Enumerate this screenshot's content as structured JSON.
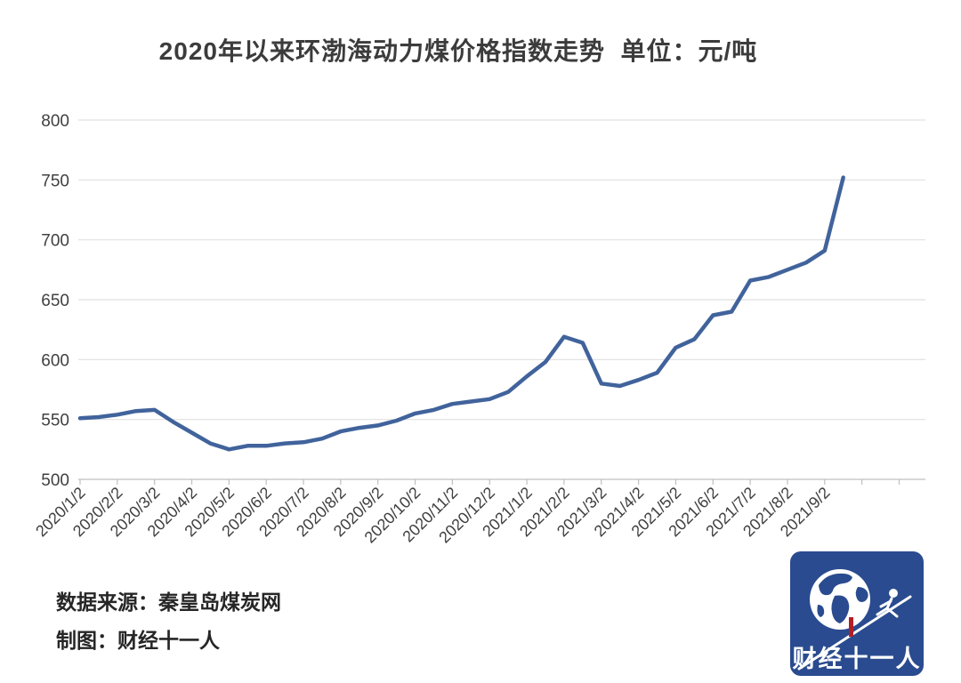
{
  "header": {
    "title": "2020年以来环渤海动力煤价格指数走势  单位：元/吨"
  },
  "footer": {
    "source_line": "数据来源：秦皇岛煤炭网",
    "credit_line": "制图：财经十一人"
  },
  "logo": {
    "text": "财经十一人",
    "bg_color": "#2a4b8f",
    "accent_color": "#b01f24",
    "icons": [
      "globe-icon",
      "fencer-icon"
    ]
  },
  "chart_data": {
    "type": "line",
    "title": "2020年以来环渤海动力煤价格指数走势",
    "unit_label": "单位：元/吨",
    "ylabel": "",
    "xlabel": "",
    "ylim": [
      500,
      800
    ],
    "y_ticks": [
      500,
      550,
      600,
      650,
      700,
      750,
      800
    ],
    "grid": true,
    "legend": "none",
    "line_color": "#41639c",
    "x": [
      "2020/1/2",
      "2020/1/16",
      "2020/2/2",
      "2020/2/16",
      "2020/3/2",
      "2020/3/16",
      "2020/4/2",
      "2020/4/16",
      "2020/5/2",
      "2020/5/16",
      "2020/6/2",
      "2020/6/16",
      "2020/7/2",
      "2020/7/16",
      "2020/8/2",
      "2020/8/16",
      "2020/9/2",
      "2020/9/16",
      "2020/10/2",
      "2020/10/16",
      "2020/11/2",
      "2020/11/16",
      "2020/12/2",
      "2020/12/16",
      "2021/1/2",
      "2021/1/16",
      "2021/2/2",
      "2021/2/16",
      "2021/3/2",
      "2021/3/16",
      "2021/4/2",
      "2021/4/16",
      "2021/5/2",
      "2021/5/16",
      "2021/6/2",
      "2021/6/16",
      "2021/7/2",
      "2021/7/16",
      "2021/8/2",
      "2021/8/16",
      "2021/9/2",
      "2021/9/16"
    ],
    "values": [
      551,
      552,
      554,
      557,
      558,
      548,
      539,
      530,
      525,
      528,
      528,
      530,
      531,
      534,
      540,
      543,
      545,
      549,
      555,
      558,
      563,
      565,
      567,
      573,
      586,
      598,
      619,
      614,
      580,
      578,
      583,
      589,
      610,
      617,
      637,
      640,
      666,
      669,
      675,
      681,
      691,
      752
    ],
    "x_tick_labels": [
      "2020/1/2",
      "2020/2/2",
      "2020/3/2",
      "2020/4/2",
      "2020/5/2",
      "2020/6/2",
      "2020/7/2",
      "2020/8/2",
      "2020/9/2",
      "2020/10/2",
      "2020/11/2",
      "2020/12/2",
      "2021/1/2",
      "2021/2/2",
      "2021/3/2",
      "2021/4/2",
      "2021/5/2",
      "2021/6/2",
      "2021/7/2",
      "2021/8/2",
      "2021/9/2"
    ]
  }
}
